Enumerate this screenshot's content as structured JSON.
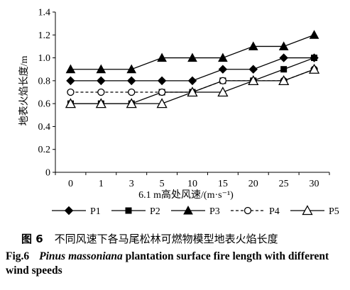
{
  "chart_data": {
    "type": "line",
    "categories": [
      "0",
      "1",
      "3",
      "5",
      "10",
      "15",
      "20",
      "25",
      "30"
    ],
    "xlabel": "6.1 m高处风速/(m·s⁻¹)",
    "ylabel": "地表火焰长度/m",
    "ylim": [
      0,
      1.4
    ],
    "yticks": [
      "0",
      "0.2",
      "0.4",
      "0.6",
      "0.8",
      "1.0",
      "1.2",
      "1.4"
    ],
    "grid": false,
    "legend_position": "bottom",
    "series": [
      {
        "name": "P1",
        "marker": "diamond-filled",
        "dash": "solid",
        "values": [
          0.8,
          0.8,
          0.8,
          0.8,
          0.8,
          0.9,
          0.9,
          1.0,
          1.0
        ]
      },
      {
        "name": "P2",
        "marker": "square-filled",
        "dash": "solid",
        "values": [
          0.6,
          0.6,
          0.6,
          0.7,
          0.7,
          0.8,
          0.8,
          0.9,
          1.0
        ]
      },
      {
        "name": "P3",
        "marker": "triangle-filled",
        "dash": "solid",
        "values": [
          0.9,
          0.9,
          0.9,
          1.0,
          1.0,
          1.0,
          1.1,
          1.1,
          1.2
        ]
      },
      {
        "name": "P4",
        "marker": "circle-open",
        "dash": "dashed",
        "values": [
          0.7,
          0.7,
          0.7,
          0.7,
          0.7,
          0.8,
          0.8,
          0.8,
          0.9
        ]
      },
      {
        "name": "P5",
        "marker": "triangle-open",
        "dash": "solid",
        "values": [
          0.6,
          0.6,
          0.6,
          0.6,
          0.7,
          0.7,
          0.8,
          0.8,
          0.9
        ]
      }
    ]
  },
  "caption": {
    "cn_fig": "图 6",
    "cn_text": "不同风速下各马尾松林可燃物模型地表火焰长度",
    "en_fig": "Fig.6",
    "en_species": "Pinus massoniana",
    "en_text": " plantation surface fire length with different wind speeds"
  }
}
